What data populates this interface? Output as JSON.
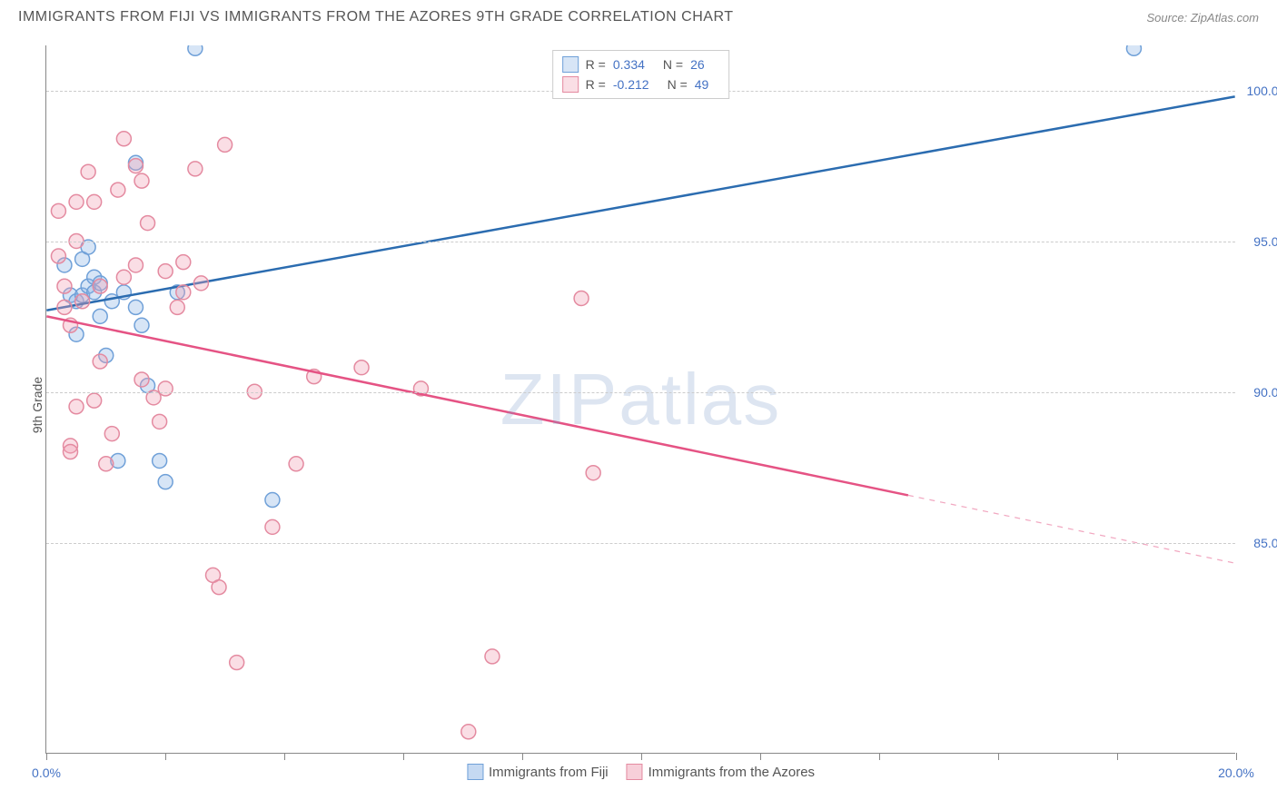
{
  "header": {
    "title": "IMMIGRANTS FROM FIJI VS IMMIGRANTS FROM THE AZORES 9TH GRADE CORRELATION CHART",
    "source": "Source: ZipAtlas.com"
  },
  "chart": {
    "type": "scatter",
    "ylabel": "9th Grade",
    "xlim": [
      0,
      20
    ],
    "ylim": [
      78,
      101.5
    ],
    "x_ticks": [
      0,
      2,
      4,
      6,
      8,
      10,
      12,
      14,
      16,
      18,
      20
    ],
    "x_tick_labels": {
      "0": "0.0%",
      "20": "20.0%"
    },
    "y_ticks": [
      85,
      90,
      95,
      100
    ],
    "y_tick_labels": {
      "85": "85.0%",
      "90": "90.0%",
      "95": "95.0%",
      "100": "100.0%"
    },
    "background_color": "#ffffff",
    "grid_color": "#cccccc",
    "axis_color": "#888888",
    "marker_radius": 8,
    "marker_stroke_width": 1.5,
    "line_width": 2.5,
    "watermark": "ZIPatlas",
    "series": [
      {
        "name": "Immigrants from Fiji",
        "color_fill": "rgba(140,180,230,0.35)",
        "color_stroke": "#6fa0d8",
        "line_color": "#2b6cb0",
        "R": "0.334",
        "N": "26",
        "trend": {
          "x1": 0,
          "y1": 92.7,
          "x2": 20,
          "y2": 99.8,
          "solid_until": 20
        },
        "points": [
          [
            0.3,
            94.2
          ],
          [
            0.4,
            93.2
          ],
          [
            0.5,
            93.0
          ],
          [
            0.6,
            93.2
          ],
          [
            0.7,
            93.5
          ],
          [
            0.8,
            93.3
          ],
          [
            0.9,
            92.5
          ],
          [
            0.5,
            91.9
          ],
          [
            0.6,
            94.4
          ],
          [
            0.8,
            93.8
          ],
          [
            1.1,
            93.0
          ],
          [
            1.3,
            93.3
          ],
          [
            1.5,
            97.6
          ],
          [
            1.5,
            92.8
          ],
          [
            1.6,
            92.2
          ],
          [
            1.7,
            90.2
          ],
          [
            1.9,
            87.7
          ],
          [
            2.0,
            87.0
          ],
          [
            2.2,
            93.3
          ],
          [
            2.5,
            101.4
          ],
          [
            3.8,
            86.4
          ],
          [
            1.2,
            87.7
          ],
          [
            0.9,
            93.6
          ],
          [
            0.7,
            94.8
          ],
          [
            1.0,
            91.2
          ],
          [
            18.3,
            101.4
          ]
        ]
      },
      {
        "name": "Immigrants from the Azores",
        "color_fill": "rgba(240,160,180,0.35)",
        "color_stroke": "#e48aa0",
        "line_color": "#e55384",
        "R": "-0.212",
        "N": "49",
        "trend": {
          "x1": 0,
          "y1": 92.5,
          "x2": 20,
          "y2": 84.3,
          "solid_until": 14.5
        },
        "points": [
          [
            0.2,
            96.0
          ],
          [
            0.2,
            94.5
          ],
          [
            0.3,
            93.5
          ],
          [
            0.3,
            92.8
          ],
          [
            0.4,
            92.2
          ],
          [
            0.4,
            88.2
          ],
          [
            0.4,
            88.0
          ],
          [
            0.5,
            96.3
          ],
          [
            0.5,
            95.0
          ],
          [
            0.5,
            89.5
          ],
          [
            0.6,
            93.0
          ],
          [
            0.7,
            97.3
          ],
          [
            0.8,
            96.3
          ],
          [
            0.8,
            89.7
          ],
          [
            0.9,
            93.5
          ],
          [
            0.9,
            91.0
          ],
          [
            1.0,
            87.6
          ],
          [
            1.1,
            88.6
          ],
          [
            1.2,
            96.7
          ],
          [
            1.3,
            93.8
          ],
          [
            1.3,
            98.4
          ],
          [
            1.5,
            97.5
          ],
          [
            1.5,
            94.2
          ],
          [
            1.6,
            97.0
          ],
          [
            1.6,
            90.4
          ],
          [
            1.7,
            95.6
          ],
          [
            1.8,
            89.8
          ],
          [
            1.9,
            89.0
          ],
          [
            2.0,
            90.1
          ],
          [
            2.2,
            92.8
          ],
          [
            2.3,
            94.3
          ],
          [
            2.5,
            97.4
          ],
          [
            2.6,
            93.6
          ],
          [
            2.8,
            83.9
          ],
          [
            3.0,
            98.2
          ],
          [
            3.2,
            81.0
          ],
          [
            3.5,
            90.0
          ],
          [
            3.8,
            85.5
          ],
          [
            4.2,
            87.6
          ],
          [
            4.5,
            90.5
          ],
          [
            5.3,
            90.8
          ],
          [
            6.3,
            90.1
          ],
          [
            7.1,
            78.7
          ],
          [
            7.5,
            81.2
          ],
          [
            9.0,
            93.1
          ],
          [
            9.2,
            87.3
          ],
          [
            2.9,
            83.5
          ],
          [
            2.3,
            93.3
          ],
          [
            2.0,
            94.0
          ]
        ]
      }
    ]
  },
  "legend_bottom": [
    {
      "label": "Immigrants from Fiji",
      "fill": "rgba(140,180,230,0.5)",
      "stroke": "#6fa0d8"
    },
    {
      "label": "Immigrants from the Azores",
      "fill": "rgba(240,160,180,0.5)",
      "stroke": "#e48aa0"
    }
  ]
}
